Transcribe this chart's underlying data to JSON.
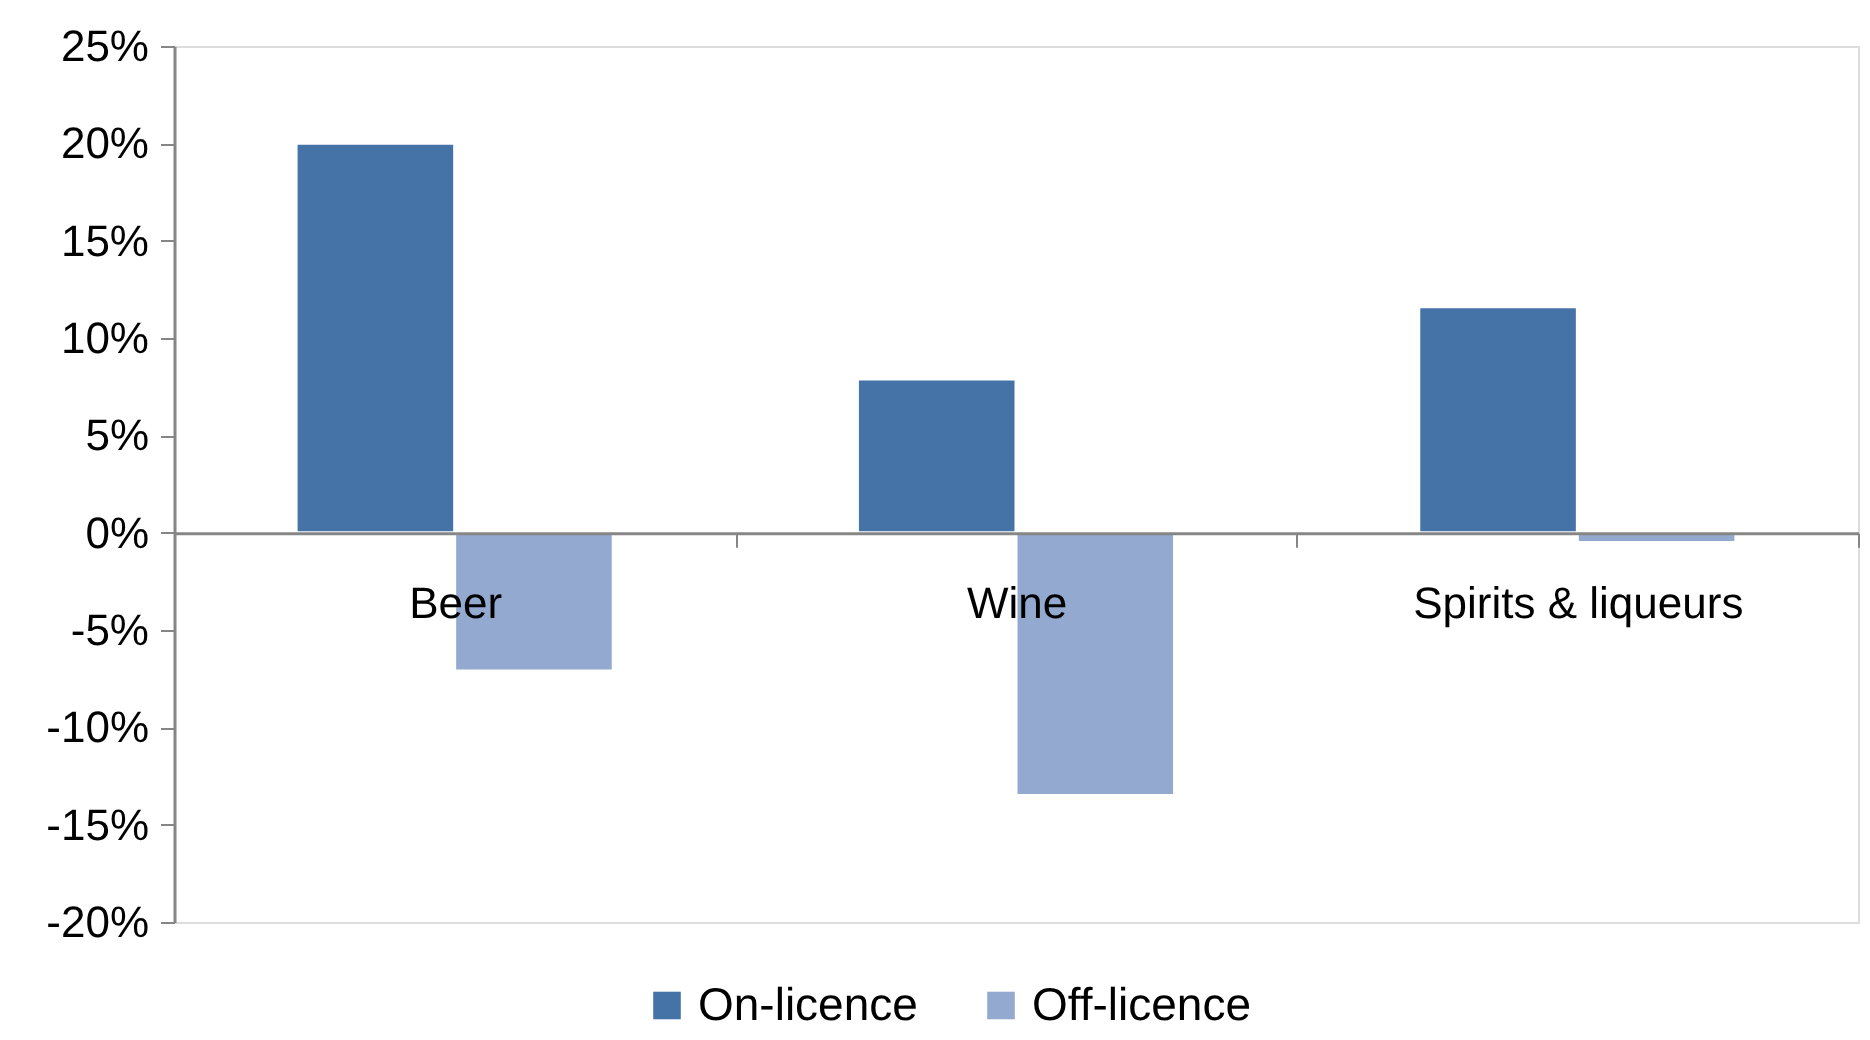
{
  "chart_data": {
    "type": "bar",
    "categories": [
      "Beer",
      "Wine",
      "Spirits & liqueurs"
    ],
    "series": [
      {
        "name": "On-licence",
        "color": "#4572a7",
        "values": [
          20,
          7.9,
          11.6
        ]
      },
      {
        "name": "Off-licence",
        "color": "#93a9cf",
        "values": [
          -7.1,
          -13.5,
          -0.5
        ]
      }
    ],
    "ylim": [
      -20,
      25
    ],
    "yticks": [
      {
        "value": -20,
        "label": "-20%"
      },
      {
        "value": -15,
        "label": "-15%"
      },
      {
        "value": -10,
        "label": "-10%"
      },
      {
        "value": -5,
        "label": "-5%"
      },
      {
        "value": 0,
        "label": "0%"
      },
      {
        "value": 5,
        "label": "5%"
      },
      {
        "value": 10,
        "label": "10%"
      },
      {
        "value": 15,
        "label": "15%"
      },
      {
        "value": 20,
        "label": "20%"
      },
      {
        "value": 25,
        "label": "25%"
      }
    ],
    "legend": "bottom",
    "grid": false
  }
}
